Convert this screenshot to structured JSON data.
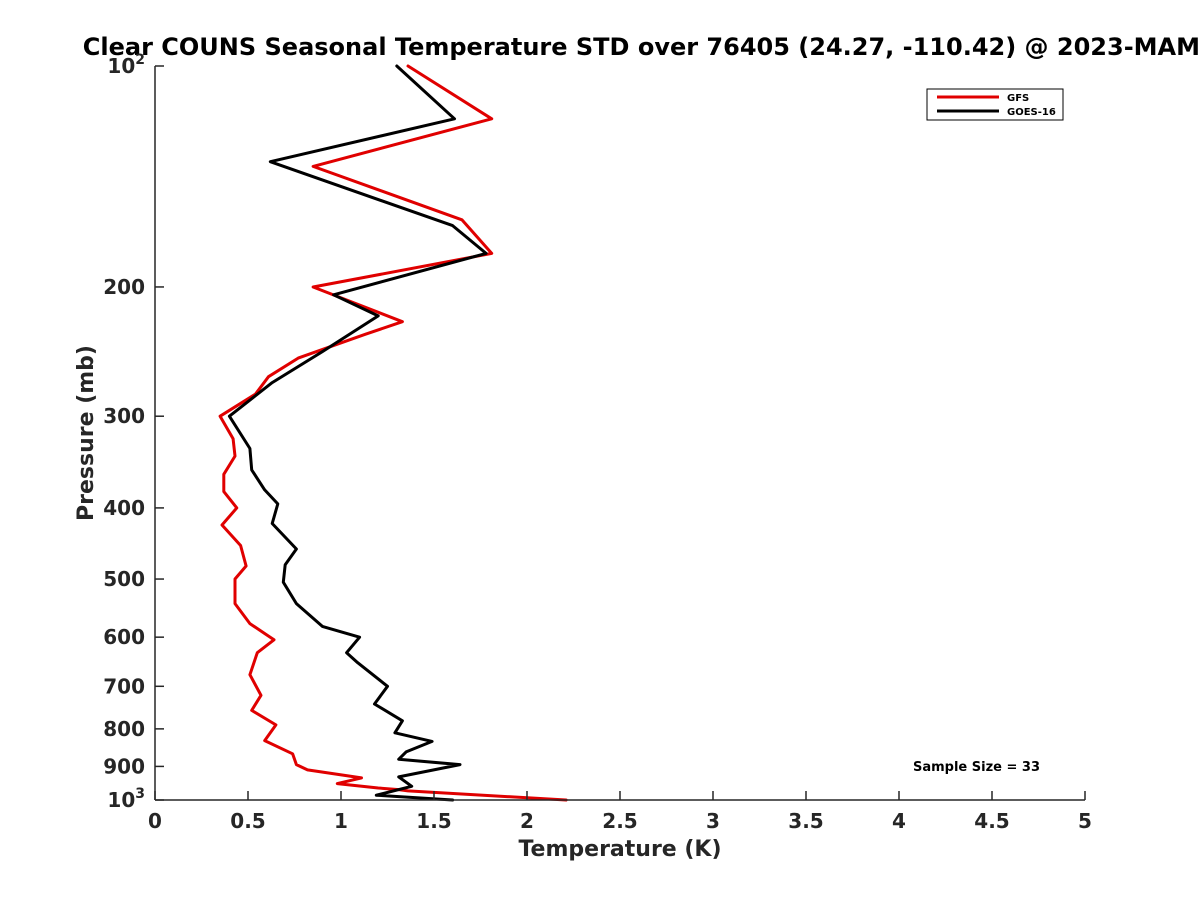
{
  "chart_data": {
    "type": "line",
    "title": "Clear COUNS Seasonal Temperature STD over 76405 (24.27, -110.42) @ 2023-MAM",
    "xlabel": "Temperature (K)",
    "ylabel": "Pressure (mb)",
    "xlim": [
      0,
      5
    ],
    "ylim": [
      100,
      1000
    ],
    "yscale": "log",
    "y_reversed": true,
    "x_ticks": [
      "0",
      "0.5",
      "1",
      "1.5",
      "2",
      "2.5",
      "3",
      "3.5",
      "4",
      "4.5",
      "5"
    ],
    "x_tick_values": [
      0,
      0.5,
      1,
      1.5,
      2,
      2.5,
      3,
      3.5,
      4,
      4.5,
      5
    ],
    "y_ticks": [
      {
        "value": 100,
        "label": "10",
        "sup": "2"
      },
      {
        "value": 200,
        "label": "200",
        "sup": ""
      },
      {
        "value": 300,
        "label": "300",
        "sup": ""
      },
      {
        "value": 400,
        "label": "400",
        "sup": ""
      },
      {
        "value": 500,
        "label": "500",
        "sup": ""
      },
      {
        "value": 600,
        "label": "600",
        "sup": ""
      },
      {
        "value": 700,
        "label": "700",
        "sup": ""
      },
      {
        "value": 800,
        "label": "800",
        "sup": ""
      },
      {
        "value": 900,
        "label": "900",
        "sup": ""
      },
      {
        "value": 1000,
        "label": "10",
        "sup": "3"
      }
    ],
    "legend_position": "top-right",
    "annotation": "Sample Size = 33",
    "series": [
      {
        "name": "GFS",
        "color": "#e00000",
        "points": [
          [
            1.36,
            100
          ],
          [
            1.81,
            118
          ],
          [
            0.85,
            137
          ],
          [
            1.65,
            162
          ],
          [
            1.81,
            180
          ],
          [
            0.85,
            200
          ],
          [
            1.33,
            223
          ],
          [
            1.13,
            232
          ],
          [
            0.77,
            250
          ],
          [
            0.61,
            265
          ],
          [
            0.54,
            280
          ],
          [
            0.35,
            300
          ],
          [
            0.42,
            322
          ],
          [
            0.43,
            340
          ],
          [
            0.37,
            360
          ],
          [
            0.37,
            380
          ],
          [
            0.44,
            400
          ],
          [
            0.36,
            422
          ],
          [
            0.46,
            450
          ],
          [
            0.49,
            480
          ],
          [
            0.43,
            500
          ],
          [
            0.43,
            540
          ],
          [
            0.51,
            575
          ],
          [
            0.64,
            605
          ],
          [
            0.55,
            630
          ],
          [
            0.51,
            675
          ],
          [
            0.57,
            720
          ],
          [
            0.52,
            755
          ],
          [
            0.65,
            790
          ],
          [
            0.59,
            830
          ],
          [
            0.74,
            865
          ],
          [
            0.76,
            895
          ],
          [
            0.82,
            910
          ],
          [
            1.11,
            933
          ],
          [
            0.98,
            950
          ],
          [
            1.2,
            963
          ],
          [
            1.31,
            968
          ],
          [
            1.36,
            972
          ],
          [
            2.21,
            1000
          ]
        ]
      },
      {
        "name": "GOES-16",
        "color": "#000000",
        "points": [
          [
            1.3,
            100
          ],
          [
            1.61,
            118
          ],
          [
            0.62,
            135
          ],
          [
            1.6,
            165
          ],
          [
            1.78,
            180
          ],
          [
            0.96,
            205
          ],
          [
            1.2,
            219
          ],
          [
            0.9,
            245
          ],
          [
            0.63,
            270
          ],
          [
            0.4,
            300
          ],
          [
            0.51,
            332
          ],
          [
            0.52,
            355
          ],
          [
            0.59,
            378
          ],
          [
            0.66,
            395
          ],
          [
            0.63,
            420
          ],
          [
            0.76,
            455
          ],
          [
            0.7,
            478
          ],
          [
            0.69,
            505
          ],
          [
            0.76,
            540
          ],
          [
            0.9,
            580
          ],
          [
            1.1,
            600
          ],
          [
            1.03,
            630
          ],
          [
            1.09,
            650
          ],
          [
            1.25,
            700
          ],
          [
            1.18,
            740
          ],
          [
            1.33,
            780
          ],
          [
            1.29,
            810
          ],
          [
            1.49,
            832
          ],
          [
            1.35,
            860
          ],
          [
            1.31,
            880
          ],
          [
            1.64,
            895
          ],
          [
            1.31,
            930
          ],
          [
            1.38,
            958
          ],
          [
            1.19,
            985
          ],
          [
            1.6,
            1000
          ]
        ]
      }
    ]
  }
}
